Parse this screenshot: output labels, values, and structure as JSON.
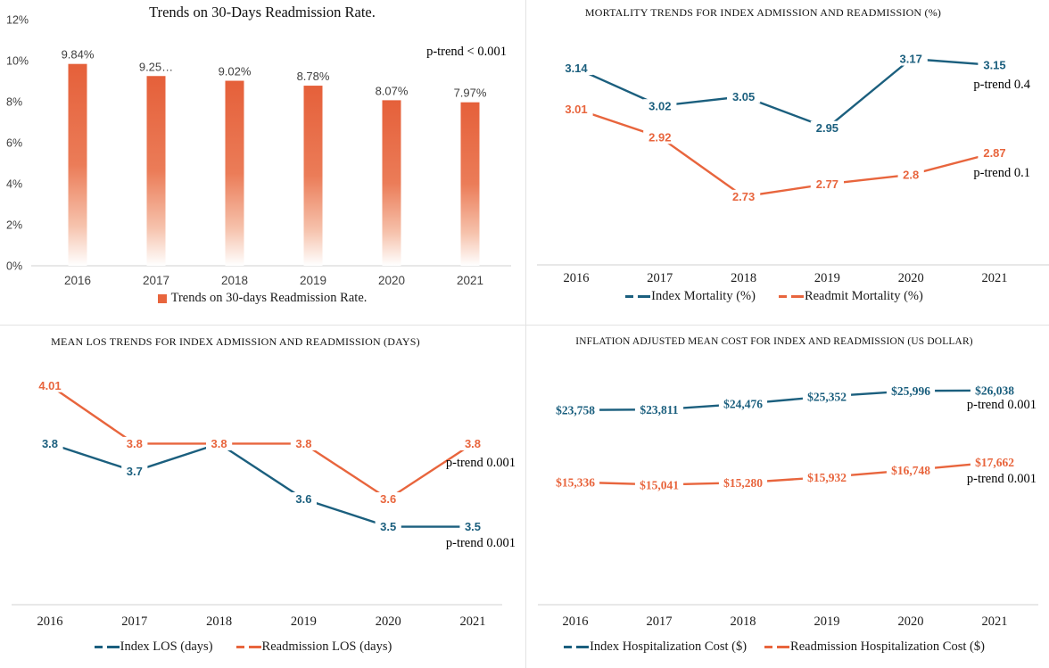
{
  "colors": {
    "blue": "#1B5F7E",
    "orange": "#E8653D",
    "bar_orange": "#E5603A",
    "axis_line": "#D9D9D9",
    "tick_text": "#3F3F3F",
    "year_text": "#1A1A1A"
  },
  "chart_data": [
    {
      "type": "bar",
      "title": "Trends on 30-Days Readmission Rate.",
      "categories": [
        "2016",
        "2017",
        "2018",
        "2019",
        "2020",
        "2021"
      ],
      "values": [
        9.84,
        9.25,
        9.02,
        8.78,
        8.07,
        7.97
      ],
      "value_labels": [
        "9.84%",
        "9.25…",
        "9.02%",
        "8.78%",
        "8.07%",
        "7.97%"
      ],
      "yticks": [
        "0%",
        "2%",
        "4%",
        "6%",
        "8%",
        "10%",
        "12%"
      ],
      "ylim": [
        0,
        12
      ],
      "annotations": [
        "p-trend < 0.001"
      ],
      "series": [
        {
          "name": "Trends on 30-days Readmission Rate.",
          "color": "orange"
        }
      ],
      "legend_position": "bottom",
      "grid": false
    },
    {
      "type": "line",
      "title": "MORTALITY TRENDS FOR INDEX ADMISSION AND READMISSION (%)",
      "categories": [
        "2016",
        "2017",
        "2018",
        "2019",
        "2020",
        "2021"
      ],
      "ylim": [
        2.56,
        3.23
      ],
      "series": [
        {
          "id": "index",
          "name": "Index Mortality (%)",
          "color": "blue",
          "values": [
            3.14,
            3.02,
            3.05,
            2.95,
            3.17,
            3.15
          ],
          "value_labels": [
            "3.14",
            "3.02",
            "3.05",
            "2.95",
            "3.17",
            "3.15"
          ]
        },
        {
          "id": "readmit",
          "name": "Readmit Mortality (%)",
          "color": "orange",
          "values": [
            3.01,
            2.92,
            2.73,
            2.77,
            2.8,
            2.87
          ],
          "value_labels": [
            "3.01",
            "2.92",
            "2.73",
            "2.77",
            "2.8",
            "2.87"
          ]
        }
      ],
      "annotations": [
        "p-trend 0.4",
        "p-trend 0.1"
      ],
      "legend_position": "bottom",
      "grid": false
    },
    {
      "type": "line",
      "title": "MEAN LOS TRENDS FOR INDEX ADMISSION AND READMISSION (DAYS)",
      "categories": [
        "2016",
        "2017",
        "2018",
        "2019",
        "2020",
        "2021"
      ],
      "ylim": [
        3.26,
        4.13
      ],
      "series": [
        {
          "id": "index",
          "name": "Index LOS (days)",
          "color": "blue",
          "values": [
            3.8,
            3.7,
            3.8,
            3.6,
            3.5,
            3.5
          ],
          "value_labels": [
            "3.8",
            "3.7",
            null,
            "3.6",
            "3.5",
            "3.5"
          ]
        },
        {
          "id": "readmission",
          "name": "Readmission LOS (days)",
          "color": "orange",
          "values": [
            4.01,
            3.8,
            3.8,
            3.8,
            3.6,
            3.8
          ],
          "value_labels": [
            "4.01",
            "3.8",
            "3.8",
            "3.8",
            "3.6",
            "3.8"
          ]
        }
      ],
      "annotations": [
        "p-trend 0.001",
        "p-trend 0.001"
      ],
      "legend_position": "bottom",
      "grid": false
    },
    {
      "type": "line",
      "title": "INFLATION ADJUSTED MEAN COST FOR INDEX AND READMISSION (US DOLLAR)",
      "categories": [
        "2016",
        "2017",
        "2018",
        "2019",
        "2020",
        "2021"
      ],
      "ylim": [
        5300,
        30500
      ],
      "series": [
        {
          "id": "index",
          "name": "Index Hospitalization Cost ($)",
          "color": "blue",
          "values": [
            23758,
            23811,
            24476,
            25352,
            25996,
            26038
          ],
          "value_labels": [
            "$23,758",
            "$23,811",
            "$24,476",
            "$25,352",
            "$25,996",
            "$26,038"
          ]
        },
        {
          "id": "readmission",
          "name": "Readmission Hospitalization Cost ($)",
          "color": "orange",
          "values": [
            15336,
            15041,
            15280,
            15932,
            16748,
            17662
          ],
          "value_labels": [
            "$15,336",
            "$15,041",
            "$15,280",
            "$15,932",
            "$16,748",
            "$17,662"
          ]
        }
      ],
      "annotations": [
        "p-trend 0.001",
        "p-trend 0.001"
      ],
      "legend_position": "bottom",
      "grid": false
    }
  ]
}
